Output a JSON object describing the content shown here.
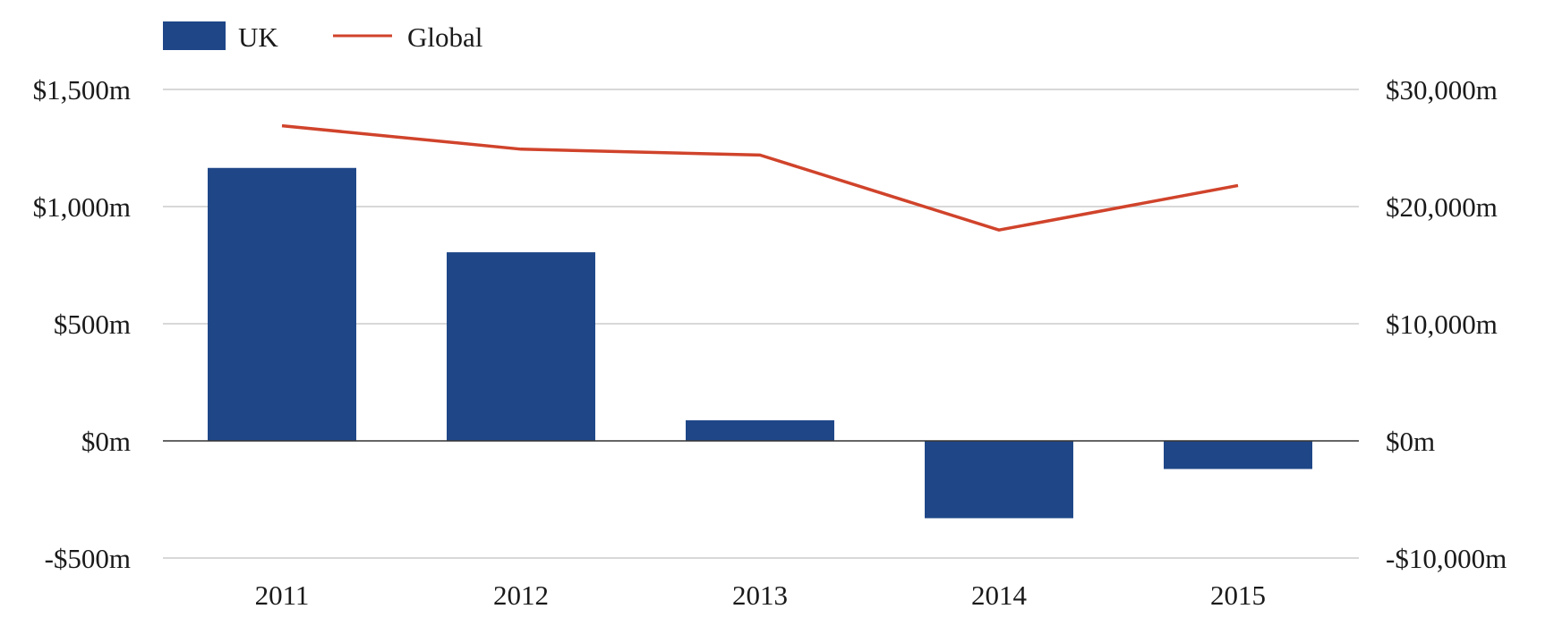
{
  "chart_data": {
    "type": "bar",
    "categories": [
      "2011",
      "2012",
      "2013",
      "2014",
      "2015"
    ],
    "series": [
      {
        "name": "UK",
        "type": "bar",
        "axis": "left",
        "color": "#1f4788",
        "values": [
          1165,
          805,
          88,
          -330,
          -120
        ]
      },
      {
        "name": "Global",
        "type": "line",
        "axis": "right",
        "color": "#d0432b",
        "values": [
          26900,
          24900,
          24400,
          18000,
          21800
        ]
      }
    ],
    "y_left": {
      "ylim": [
        -500,
        1500
      ],
      "ticks": [
        1500,
        1000,
        500,
        0,
        -500
      ],
      "tick_labels": [
        "$1,500m",
        "$1,000m",
        "$500m",
        "$0m",
        "-$500m"
      ]
    },
    "y_right": {
      "ylim": [
        -10000,
        30000
      ],
      "ticks": [
        30000,
        20000,
        10000,
        0,
        -10000
      ],
      "tick_labels": [
        "$30,000m",
        "$20,000m",
        "$10,000m",
        "$0m",
        "-$10,000m"
      ]
    },
    "grid": true,
    "legend": "top-left",
    "title": "",
    "xlabel": "",
    "ylabel": ""
  },
  "legend": {
    "items": [
      {
        "label": "UK",
        "symbol": "bar",
        "color": "#1f4788"
      },
      {
        "label": "Global",
        "symbol": "line",
        "color": "#d0432b"
      }
    ]
  },
  "colors": {
    "grid": "#cccccc",
    "zero_line": "#333333",
    "bar": "#1f4788",
    "line": "#d0432b"
  }
}
